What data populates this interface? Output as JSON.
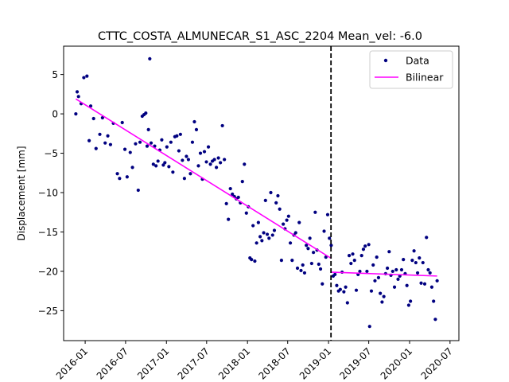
{
  "chart_data": {
    "type": "scatter",
    "title": "CTTC_COSTA_ALMUNECAR_S1_ASC_2204     Mean_vel: -6.0",
    "xlabel": "",
    "ylabel": "Displacement [mm]",
    "xlim": [
      "2015-09-26",
      "2020-08-10"
    ],
    "ylim": [
      -28.8,
      8.6
    ],
    "x_ticks": [
      "2016-01",
      "2016-07",
      "2017-01",
      "2017-07",
      "2018-01",
      "2018-07",
      "2019-01",
      "2019-07",
      "2020-01",
      "2020-07"
    ],
    "y_ticks": [
      5,
      0,
      -5,
      -10,
      -15,
      -20,
      -25
    ],
    "grid": false,
    "legend": {
      "placement": "top-right",
      "entries": [
        {
          "label": "Data",
          "marker": "dot",
          "color": "#000080"
        },
        {
          "label": "Bilinear",
          "marker": "line",
          "color": "#ff00ff"
        }
      ]
    },
    "breakpoint": {
      "x": "2019-01-12",
      "style": "dashed",
      "color": "#000000"
    },
    "series": [
      {
        "name": "Data",
        "color": "#000080",
        "points": [
          [
            "2015-11-20",
            0.0
          ],
          [
            "2015-11-26",
            2.8
          ],
          [
            "2015-12-02",
            2.2
          ],
          [
            "2015-12-14",
            1.3
          ],
          [
            "2015-12-26",
            4.6
          ],
          [
            "2016-01-09",
            4.8
          ],
          [
            "2016-01-19",
            -3.4
          ],
          [
            "2016-01-26",
            1.0
          ],
          [
            "2016-02-08",
            -0.6
          ],
          [
            "2016-02-19",
            -4.4
          ],
          [
            "2016-03-07",
            -2.6
          ],
          [
            "2016-03-19",
            -0.5
          ],
          [
            "2016-03-31",
            -3.7
          ],
          [
            "2016-04-12",
            -2.8
          ],
          [
            "2016-04-24",
            -3.9
          ],
          [
            "2016-05-07",
            -1.2
          ],
          [
            "2016-05-25",
            -7.6
          ],
          [
            "2016-06-04",
            -8.2
          ],
          [
            "2016-06-16",
            -1.1
          ],
          [
            "2016-06-28",
            -4.5
          ],
          [
            "2016-07-08",
            -8.0
          ],
          [
            "2016-07-22",
            -4.9
          ],
          [
            "2016-08-01",
            -6.8
          ],
          [
            "2016-08-15",
            -3.8
          ],
          [
            "2016-08-27",
            -9.7
          ],
          [
            "2016-09-04",
            -3.6
          ],
          [
            "2016-09-14",
            -0.3
          ],
          [
            "2016-09-22",
            -0.1
          ],
          [
            "2016-09-30",
            0.1
          ],
          [
            "2016-10-06",
            -4.1
          ],
          [
            "2016-10-12",
            -2.0
          ],
          [
            "2016-10-18",
            7.0
          ],
          [
            "2016-10-24",
            -3.7
          ],
          [
            "2016-11-03",
            -6.4
          ],
          [
            "2016-11-09",
            -4.1
          ],
          [
            "2016-11-15",
            -6.6
          ],
          [
            "2016-11-24",
            -6.0
          ],
          [
            "2016-12-02",
            -4.6
          ],
          [
            "2016-12-11",
            -3.3
          ],
          [
            "2016-12-18",
            -6.5
          ],
          [
            "2016-12-25",
            -6.2
          ],
          [
            "2017-01-03",
            -4.2
          ],
          [
            "2017-01-12",
            -6.7
          ],
          [
            "2017-01-21",
            -3.6
          ],
          [
            "2017-01-30",
            -7.4
          ],
          [
            "2017-02-08",
            -2.9
          ],
          [
            "2017-02-17",
            -2.8
          ],
          [
            "2017-02-26",
            -4.7
          ],
          [
            "2017-03-05",
            -2.6
          ],
          [
            "2017-03-14",
            -5.9
          ],
          [
            "2017-03-23",
            -8.2
          ],
          [
            "2017-04-01",
            -5.4
          ],
          [
            "2017-04-10",
            -5.8
          ],
          [
            "2017-04-19",
            -7.6
          ],
          [
            "2017-04-28",
            -3.6
          ],
          [
            "2017-05-07",
            -1.0
          ],
          [
            "2017-05-16",
            -2.0
          ],
          [
            "2017-05-25",
            -6.6
          ],
          [
            "2017-06-03",
            -5.0
          ],
          [
            "2017-06-12",
            -8.3
          ],
          [
            "2017-06-21",
            -4.8
          ],
          [
            "2017-06-30",
            -6.1
          ],
          [
            "2017-07-09",
            -4.2
          ],
          [
            "2017-07-18",
            -6.4
          ],
          [
            "2017-07-27",
            -6.0
          ],
          [
            "2017-08-05",
            -5.8
          ],
          [
            "2017-08-14",
            -6.8
          ],
          [
            "2017-08-23",
            -5.6
          ],
          [
            "2017-09-01",
            -6.2
          ],
          [
            "2017-09-10",
            -1.5
          ],
          [
            "2017-09-19",
            -5.8
          ],
          [
            "2017-09-28",
            -11.4
          ],
          [
            "2017-10-07",
            -13.4
          ],
          [
            "2017-10-16",
            -9.5
          ],
          [
            "2017-10-25",
            -10.2
          ],
          [
            "2017-11-03",
            -10.5
          ],
          [
            "2017-11-12",
            -10.8
          ],
          [
            "2017-11-21",
            -10.6
          ],
          [
            "2017-11-30",
            -11.3
          ],
          [
            "2017-12-09",
            -8.6
          ],
          [
            "2017-12-18",
            -6.4
          ],
          [
            "2017-12-27",
            -12.6
          ],
          [
            "2018-01-05",
            -11.8
          ],
          [
            "2018-01-12",
            -18.3
          ],
          [
            "2018-01-19",
            -18.5
          ],
          [
            "2018-01-26",
            -14.2
          ],
          [
            "2018-02-03",
            -18.7
          ],
          [
            "2018-02-11",
            -16.4
          ],
          [
            "2018-02-19",
            -13.8
          ],
          [
            "2018-02-27",
            -15.6
          ],
          [
            "2018-03-07",
            -16.1
          ],
          [
            "2018-03-15",
            -15.1
          ],
          [
            "2018-03-23",
            -11.0
          ],
          [
            "2018-03-31",
            -15.3
          ],
          [
            "2018-04-08",
            -15.8
          ],
          [
            "2018-04-16",
            -10.0
          ],
          [
            "2018-04-24",
            -15.4
          ],
          [
            "2018-05-02",
            -14.8
          ],
          [
            "2018-05-10",
            -11.3
          ],
          [
            "2018-05-18",
            -10.4
          ],
          [
            "2018-05-26",
            -12.1
          ],
          [
            "2018-06-03",
            -18.6
          ],
          [
            "2018-06-11",
            -14.0
          ],
          [
            "2018-06-19",
            -14.6
          ],
          [
            "2018-06-27",
            -13.5
          ],
          [
            "2018-07-05",
            -13.0
          ],
          [
            "2018-07-13",
            -16.4
          ],
          [
            "2018-07-21",
            -18.6
          ],
          [
            "2018-07-29",
            -15.4
          ],
          [
            "2018-08-06",
            -15.1
          ],
          [
            "2018-08-14",
            -19.6
          ],
          [
            "2018-08-22",
            -13.8
          ],
          [
            "2018-08-30",
            -19.9
          ],
          [
            "2018-09-07",
            -19.2
          ],
          [
            "2018-09-15",
            -20.2
          ],
          [
            "2018-09-23",
            -16.7
          ],
          [
            "2018-10-01",
            -17.1
          ],
          [
            "2018-10-09",
            -15.8
          ],
          [
            "2018-10-17",
            -19.0
          ],
          [
            "2018-10-25",
            -17.6
          ],
          [
            "2018-11-02",
            -12.5
          ],
          [
            "2018-11-10",
            -17.3
          ],
          [
            "2018-11-18",
            -19.1
          ],
          [
            "2018-11-26",
            -19.7
          ],
          [
            "2018-12-04",
            -21.6
          ],
          [
            "2018-12-12",
            -14.9
          ],
          [
            "2018-12-20",
            -18.2
          ],
          [
            "2018-12-28",
            -12.8
          ],
          [
            "2019-01-05",
            -15.8
          ],
          [
            "2019-01-13",
            -16.7
          ],
          [
            "2019-01-22",
            -20.6
          ],
          [
            "2019-01-30",
            -20.4
          ],
          [
            "2019-02-07",
            -21.8
          ],
          [
            "2019-02-15",
            -22.5
          ],
          [
            "2019-02-23",
            -22.3
          ],
          [
            "2019-03-03",
            -20.1
          ],
          [
            "2019-03-11",
            -22.6
          ],
          [
            "2019-03-19",
            -22.0
          ],
          [
            "2019-03-27",
            -24.0
          ],
          [
            "2019-04-04",
            -18.0
          ],
          [
            "2019-04-12",
            -19.0
          ],
          [
            "2019-04-20",
            -17.8
          ],
          [
            "2019-04-28",
            -18.6
          ],
          [
            "2019-05-06",
            -22.4
          ],
          [
            "2019-05-14",
            -20.4
          ],
          [
            "2019-05-22",
            -20.0
          ],
          [
            "2019-05-30",
            -18.0
          ],
          [
            "2019-06-07",
            -17.2
          ],
          [
            "2019-06-15",
            -16.8
          ],
          [
            "2019-06-23",
            -20.0
          ],
          [
            "2019-07-01",
            -16.6
          ],
          [
            "2019-07-05",
            -27.0
          ],
          [
            "2019-07-13",
            -22.5
          ],
          [
            "2019-07-21",
            -19.2
          ],
          [
            "2019-07-29",
            -21.2
          ],
          [
            "2019-08-06",
            -18.2
          ],
          [
            "2019-08-14",
            -20.8
          ],
          [
            "2019-08-22",
            -22.8
          ],
          [
            "2019-08-30",
            -23.9
          ],
          [
            "2019-09-07",
            -23.2
          ],
          [
            "2019-09-15",
            -20.3
          ],
          [
            "2019-09-23",
            -19.6
          ],
          [
            "2019-10-01",
            -17.5
          ],
          [
            "2019-10-09",
            -20.5
          ],
          [
            "2019-10-17",
            -20.0
          ],
          [
            "2019-10-25",
            -22.0
          ],
          [
            "2019-11-02",
            -19.8
          ],
          [
            "2019-11-10",
            -21.0
          ],
          [
            "2019-11-18",
            -20.6
          ],
          [
            "2019-11-26",
            -19.8
          ],
          [
            "2019-12-04",
            -18.5
          ],
          [
            "2019-12-12",
            -20.3
          ],
          [
            "2019-12-20",
            -21.8
          ],
          [
            "2019-12-28",
            -24.3
          ],
          [
            "2020-01-05",
            -23.8
          ],
          [
            "2020-01-13",
            -18.6
          ],
          [
            "2020-01-21",
            -17.4
          ],
          [
            "2020-01-29",
            -18.9
          ],
          [
            "2020-02-06",
            -20.2
          ],
          [
            "2020-02-14",
            -18.3
          ],
          [
            "2020-02-22",
            -21.5
          ],
          [
            "2020-03-01",
            -18.9
          ],
          [
            "2020-03-09",
            -21.6
          ],
          [
            "2020-03-17",
            -15.7
          ],
          [
            "2020-03-25",
            -19.8
          ],
          [
            "2020-04-02",
            -20.2
          ],
          [
            "2020-04-10",
            -22.0
          ],
          [
            "2020-04-18",
            -23.8
          ],
          [
            "2020-04-26",
            -26.1
          ],
          [
            "2020-05-04",
            -21.2
          ]
        ]
      },
      {
        "name": "Bilinear",
        "color": "#ff00ff",
        "segments": [
          [
            [
              "2015-11-20",
              1.9
            ],
            [
              "2019-01-10",
              -18.3
            ]
          ],
          [
            [
              "2019-01-10",
              -20.1
            ],
            [
              "2020-05-04",
              -20.6
            ]
          ]
        ]
      }
    ]
  }
}
